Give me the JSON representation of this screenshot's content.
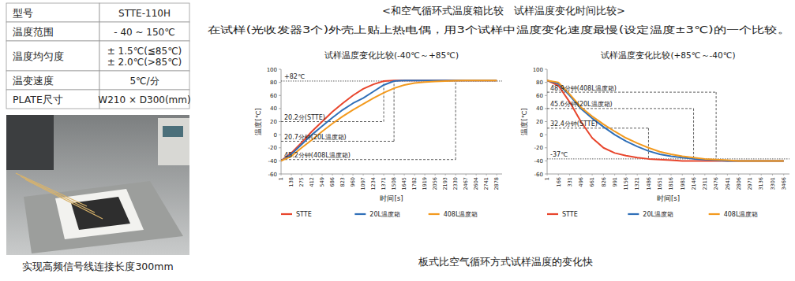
{
  "table": {
    "rows": [
      [
        "型号",
        "STTE-110H"
      ],
      [
        "温度范围",
        "- 40 ~ 150℃"
      ],
      [
        "温度均匀度",
        [
          "± 1.5℃(≦85℃)",
          "± 2.0℃(>85℃)"
        ]
      ],
      [
        "温变速度",
        "5℃/分"
      ],
      [
        "PLATE尺寸",
        "W210 × D300(mm)"
      ]
    ]
  },
  "photo_caption": "实现高频信号线连接长度300mm",
  "title": "<和空气循环式温度箱比较　试样温度变化时间比较>",
  "subtitle": "在试样(光收发器3个)外壳上贴上热电偶，用3个试样中温度变化速度最慢(设定温度±3℃)的一个比较。",
  "chart_data": [
    {
      "type": "line",
      "title": "试样温度变化比较(-40℃～+85℃)",
      "x_label": "时间[s]",
      "y_label": "温度[℃]",
      "x": [
        1,
        138,
        275,
        412,
        549,
        686,
        823,
        960,
        1097,
        1234,
        1371,
        1508,
        1645,
        1782,
        1919,
        2056,
        2193,
        2330,
        2467,
        2604,
        2741,
        2878
      ],
      "xlim": [
        1,
        2950
      ],
      "xticks": [
        1,
        138,
        275,
        412,
        549,
        686,
        823,
        960,
        1097,
        1234,
        1371,
        1508,
        1645,
        1782,
        1919,
        2056,
        2193,
        2330,
        2467,
        2604,
        2741,
        2878
      ],
      "ylim": [
        -60,
        100
      ],
      "yticks": [
        -60,
        -40,
        -20,
        0,
        20,
        40,
        60,
        80,
        100
      ],
      "grid": false,
      "legend": "bottom",
      "series": [
        {
          "name": "STTE",
          "color": "#e8452c",
          "values": [
            -40,
            -28,
            -12,
            5,
            20,
            35,
            48,
            60,
            70,
            77,
            82,
            83,
            83,
            83,
            83,
            83,
            83,
            83,
            83,
            83,
            83,
            83
          ]
        },
        {
          "name": "20L温度箱",
          "color": "#2f6fb8",
          "values": [
            -40,
            -30,
            -15,
            0,
            13,
            26,
            38,
            48,
            56,
            66,
            76,
            82,
            83,
            83,
            83,
            83,
            83,
            83,
            83,
            83,
            83,
            83
          ]
        },
        {
          "name": "408L温度箱",
          "color": "#f39a1e",
          "values": [
            -40,
            -33,
            -20,
            -8,
            5,
            17,
            28,
            38,
            47,
            56,
            64,
            71,
            76,
            79,
            80.5,
            81.5,
            82,
            82.5,
            83,
            83,
            83,
            83
          ]
        }
      ],
      "annotations": [
        {
          "text": "+82℃",
          "y": 82
        },
        {
          "text": "20.2分(STTE)",
          "x": 1371,
          "y": 20
        },
        {
          "text": "20.7分钟(20L温度箱)",
          "x": 1508,
          "y": -10
        },
        {
          "text": "45.2分钟(408L温度箱)",
          "x": 2330,
          "y": -38
        }
      ]
    },
    {
      "type": "line",
      "title": "试样温度变化比较(+85℃～-40℃)",
      "x_label": "时间[s]",
      "y_label": "温度[℃]",
      "x": [
        1,
        166,
        331,
        496,
        661,
        826,
        991,
        1156,
        1321,
        1486,
        1651,
        1816,
        1981,
        2146,
        2311,
        2476,
        2641,
        2806,
        2971,
        3136,
        3301,
        3466
      ],
      "xlim": [
        1,
        3550
      ],
      "xticks": [
        1,
        166,
        331,
        496,
        661,
        826,
        991,
        1156,
        1321,
        1486,
        1651,
        1816,
        1981,
        2146,
        2311,
        2476,
        2641,
        2806,
        2971,
        3136,
        3301,
        3466
      ],
      "ylim": [
        -60,
        100
      ],
      "yticks": [
        -60,
        -40,
        -20,
        0,
        20,
        40,
        60,
        80,
        100
      ],
      "grid": false,
      "legend": "bottom",
      "series": [
        {
          "name": "STTE",
          "color": "#e8452c",
          "values": [
            83,
            75,
            50,
            20,
            -5,
            -20,
            -28,
            -32,
            -35,
            -37,
            -38,
            -39,
            -40,
            -40,
            -40,
            -40,
            -40,
            -40,
            -40,
            -40,
            -40,
            -40
          ]
        },
        {
          "name": "20L温度箱",
          "color": "#2f6fb8",
          "values": [
            83,
            78,
            60,
            40,
            25,
            12,
            0,
            -10,
            -18,
            -25,
            -30,
            -33,
            -35,
            -37,
            -38,
            -39,
            -40,
            -40,
            -40,
            -40,
            -40,
            -40
          ]
        },
        {
          "name": "408L温度箱",
          "color": "#f39a1e",
          "values": [
            83,
            80,
            62,
            42,
            28,
            16,
            5,
            -5,
            -13,
            -20,
            -26,
            -30,
            -33,
            -35,
            -37,
            -38,
            -39,
            -40,
            -40,
            -40,
            -40,
            -40
          ]
        }
      ],
      "annotations": [
        {
          "text": "-37℃",
          "y": -37
        },
        {
          "text": "48.9分钟(408L温度箱)",
          "x": 2476,
          "y": 65
        },
        {
          "text": "45.6分钟(20L温度箱)",
          "x": 2146,
          "y": 40
        },
        {
          "text": "32.4分钟(STTE)",
          "x": 1486,
          "y": 10
        }
      ]
    }
  ],
  "caption": "板式比空气循环方式试样温度的变化快"
}
